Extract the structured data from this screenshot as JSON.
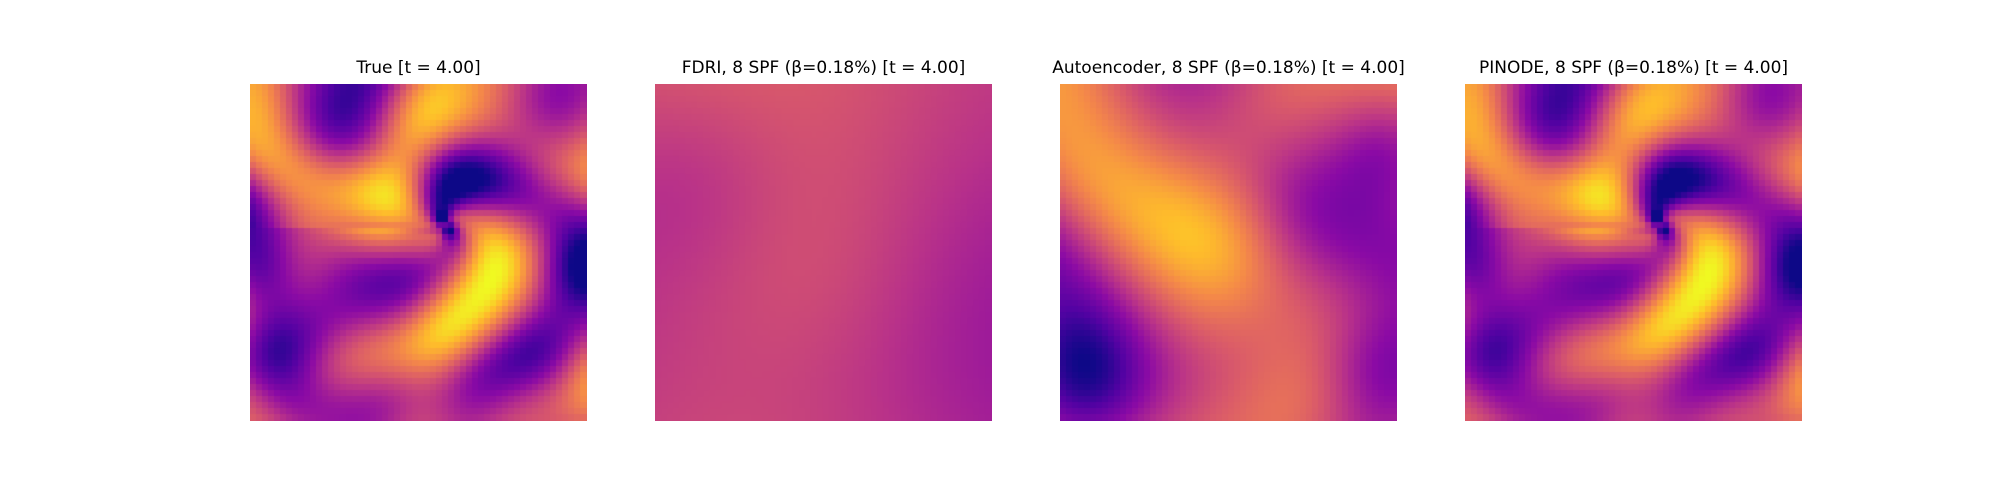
{
  "figure": {
    "colormap": "plasma",
    "panels": [
      {
        "title": "True [t = 4.00]"
      },
      {
        "title": "FDRI, 8 SPF (β=0.18%) [t = 4.00]"
      },
      {
        "title": "Autoencoder, 8 SPF (β=0.18%) [t = 4.00]"
      },
      {
        "title": "PINODE, 8 SPF (β=0.18%) [t = 4.00]"
      }
    ]
  }
}
